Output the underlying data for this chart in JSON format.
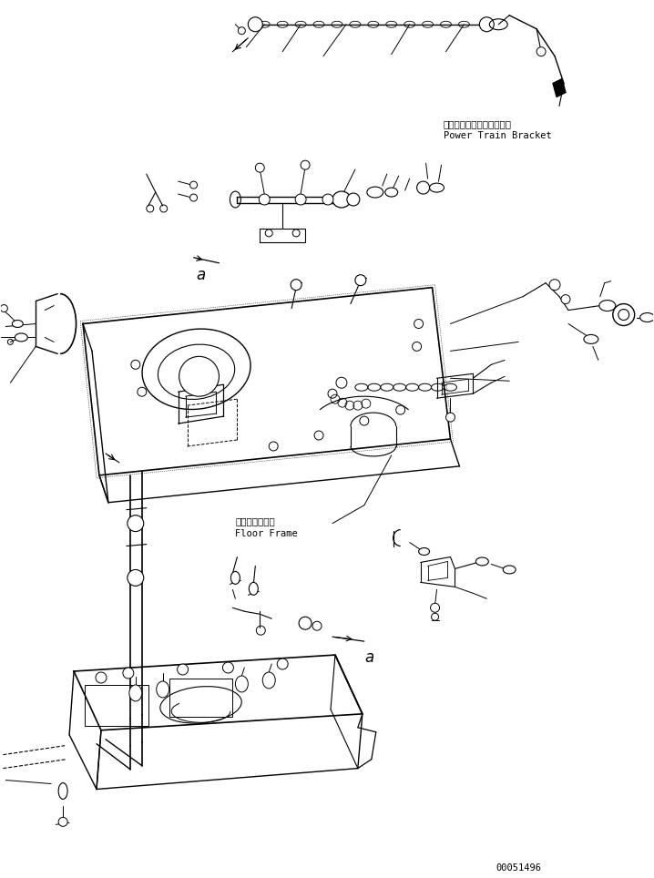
{
  "background_color": "#ffffff",
  "line_color": "#000000",
  "text_color": "#000000",
  "page_id": "00051496",
  "figsize": [
    7.18,
    9.64
  ],
  "dpi": 100,
  "labels": {
    "power_train_jp": "パワートレインブラケット",
    "power_train_en": "Power Train Bracket",
    "floor_frame_jp": "フロアフレーム",
    "floor_frame_en": "Floor Frame",
    "label_a1": "a",
    "label_a2": "a"
  }
}
